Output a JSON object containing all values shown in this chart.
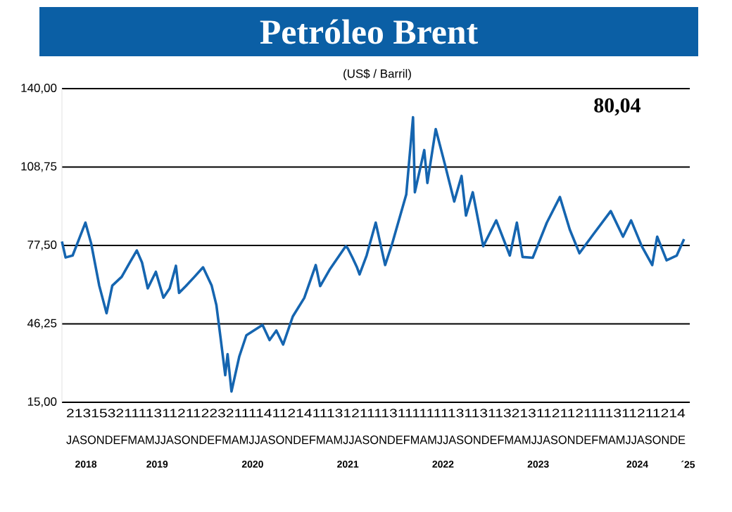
{
  "chart_data": {
    "type": "line",
    "title": "Petróleo Brent",
    "subtitle": "(US$ / Barril)",
    "annotations": [
      "80,04",
      "2131532111131121122321111411214111312111131111111131131132131121121111311211214",
      "JASONDEFMAMJJASONDEFMAMJJASONDEFMAMJJASONDEFMAMJJASONDEFMAMJJASONDEFMAMJJASONDE"
    ],
    "color": "#1565b0",
    "grid": "y",
    "x": [
      "2018-07-01",
      "2018-07-15",
      "2018-08-11",
      "2018-08-29",
      "2018-09-29",
      "2018-10-21",
      "2018-11-21",
      "2018-12-19",
      "2019-01-10",
      "2019-02-15",
      "2019-03-18",
      "2019-04-14",
      "2019-05-04",
      "2019-05-26",
      "2019-06-26",
      "2019-07-25",
      "2019-08-18",
      "2019-09-11",
      "2019-09-23",
      "2019-10-19",
      "2019-11-21",
      "2019-12-24",
      "2020-01-26",
      "2020-02-13",
      "2020-02-29",
      "2020-03-18",
      "2020-03-27",
      "2020-04-11",
      "2020-05-11",
      "2020-06-07",
      "2020-08-08",
      "2020-09-04",
      "2020-09-30",
      "2020-10-26",
      "2020-12-02",
      "2021-01-15",
      "2021-02-28",
      "2021-03-17",
      "2021-04-22",
      "2021-06-23",
      "2021-07-01",
      "2021-07-19",
      "2021-08-05",
      "2021-08-15",
      "2021-09-11",
      "2021-10-16",
      "2021-11-21",
      "2021-12-18",
      "2022-02-10",
      "2022-03-08",
      "2022-03-15",
      "2022-04-20",
      "2022-05-02",
      "2022-06-03",
      "2022-07-08",
      "2022-08-13",
      "2022-09-10",
      "2022-09-27",
      "2022-10-23",
      "2022-12-02",
      "2023-01-21",
      "2023-03-14",
      "2023-04-10",
      "2023-05-02",
      "2023-06-10",
      "2023-08-03",
      "2023-09-22",
      "2023-10-30",
      "2023-12-06",
      "2024-01-28",
      "2024-04-04",
      "2024-05-21",
      "2024-06-21",
      "2024-08-01",
      "2024-09-10",
      "2024-09-29",
      "2024-11-04",
      "2024-12-13",
      "2025-01-10"
    ],
    "values": [
      79.1,
      72.7,
      73.5,
      78.3,
      86.6,
      78.3,
      61.5,
      50.5,
      61.5,
      65,
      70.7,
      75.5,
      70.7,
      60.4,
      67,
      56.7,
      60.4,
      69.4,
      58.6,
      61.3,
      65,
      68.8,
      61.5,
      53.8,
      40.8,
      25.8,
      34.2,
      19.3,
      33.3,
      41.7,
      45.8,
      39.8,
      43.6,
      38,
      49.2,
      56.6,
      69.7,
      61.3,
      67.8,
      77.2,
      76.3,
      72.6,
      68.8,
      66,
      73.5,
      86.6,
      69.7,
      78.2,
      97.8,
      128.6,
      98.7,
      115.5,
      102.4,
      123.9,
      109.9,
      95,
      105.2,
      89.4,
      98.7,
      77.2,
      87.5,
      73.5,
      86.6,
      72.9,
      72.6,
      86.6,
      96.8,
      83.8,
      74.4,
      81.9,
      91.2,
      81,
      87.5,
      77.2,
      69.7,
      81,
      71.6,
      73.5,
      80.0
    ],
    "xlim": [
      "2018-07-01",
      "2025-02-01"
    ],
    "ylim": [
      15,
      140
    ],
    "yticks": [
      {
        "value": 15,
        "label": "15,00"
      },
      {
        "value": 46.25,
        "label": "46,25"
      },
      {
        "value": 77.5,
        "label": "77,50"
      },
      {
        "value": 108.75,
        "label": "108,75"
      },
      {
        "value": 140,
        "label": "140,00"
      }
    ],
    "xticks": [
      {
        "value": "2018-10-01",
        "label": "2018"
      },
      {
        "value": "2019-07-01",
        "label": "2019"
      },
      {
        "value": "2020-07-01",
        "label": "2020"
      },
      {
        "value": "2021-07-01",
        "label": "2021"
      },
      {
        "value": "2022-07-01",
        "label": "2022"
      },
      {
        "value": "2023-07-01",
        "label": "2023"
      },
      {
        "value": "2024-07-15",
        "label": "2024"
      },
      {
        "value": "2025-01-25",
        "label": "´25"
      }
    ]
  }
}
